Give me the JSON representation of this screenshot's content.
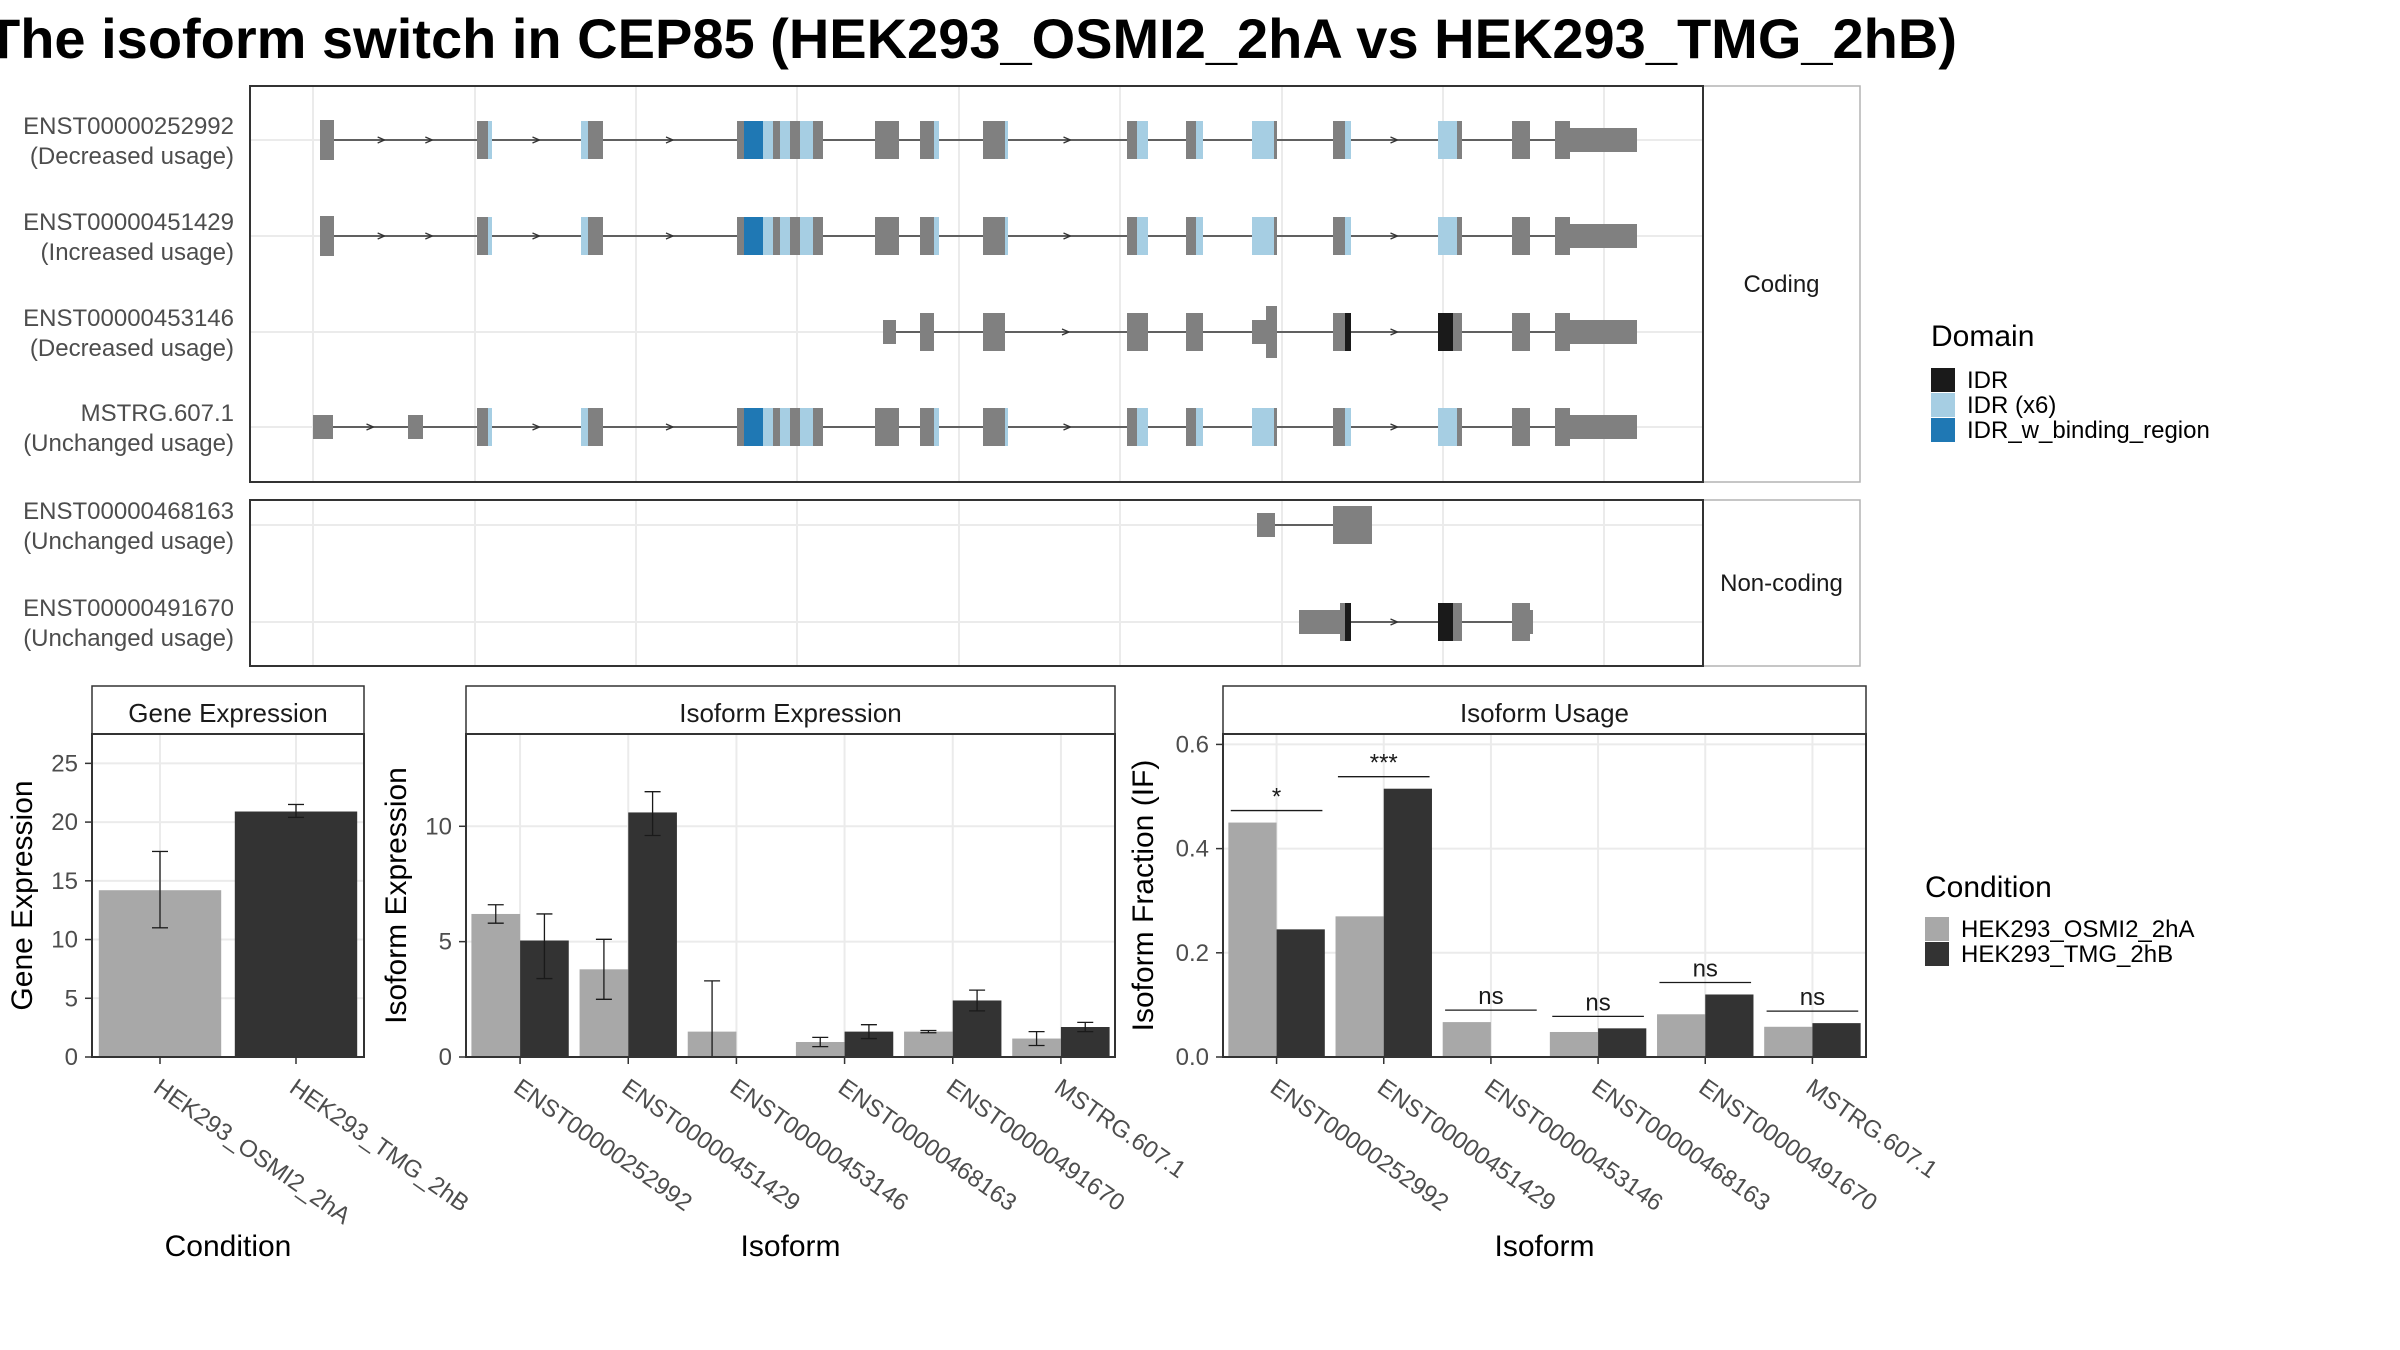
{
  "title": "The isoform switch in CEP85 (HEK293_OSMI2_2hA vs HEK293_TMG_2hB)",
  "colors": {
    "exon": "#808080",
    "IDR": "#1a1a1a",
    "IDR (x6)": "#a6cee3",
    "IDR_w_binding_region": "#1f78b4",
    "condA": "#a8a8a8",
    "condB": "#333333",
    "panel_border": "#333333",
    "strip_border": "#b3b3b3",
    "grid": "#ebebeb"
  },
  "structure": {
    "groups": [
      {
        "label": "Coding",
        "transcripts": [
          {
            "id": "ENST00000252992",
            "status": "(Decreased usage)"
          },
          {
            "id": "ENST00000451429",
            "status": "(Increased usage)"
          },
          {
            "id": "ENST00000453146",
            "status": "(Decreased usage)"
          },
          {
            "id": "MSTRG.607.1",
            "status": "(Unchanged usage)"
          }
        ]
      },
      {
        "label": "Non-coding",
        "transcripts": [
          {
            "id": "ENST00000468163",
            "status": "(Unchanged usage)"
          },
          {
            "id": "ENST00000491670",
            "status": "(Unchanged usage)"
          }
        ]
      }
    ],
    "domain_legend": {
      "title": "Domain",
      "items": [
        {
          "label": "IDR",
          "color": "#1a1a1a"
        },
        {
          "label": "IDR (x6)",
          "color": "#a6cee3"
        },
        {
          "label": "IDR_w_binding_region",
          "color": "#1f78b4"
        }
      ]
    }
  },
  "condition_legend": {
    "title": "Condition",
    "items": [
      {
        "label": "HEK293_OSMI2_2hA",
        "color": "#a8a8a8"
      },
      {
        "label": "HEK293_TMG_2hB",
        "color": "#333333"
      }
    ]
  },
  "chart_data": [
    {
      "type": "bar",
      "title": "Gene Expression",
      "xlabel": "Condition",
      "ylabel": "Gene Expression",
      "ylim": [
        0,
        27.5
      ],
      "yticks": [
        0,
        5,
        10,
        15,
        20,
        25
      ],
      "categories": [
        "HEK293_OSMI2_2hA",
        "HEK293_TMG_2hB"
      ],
      "values": [
        14.2,
        20.9
      ],
      "errors": [
        [
          11.0,
          17.5
        ],
        [
          20.4,
          21.5
        ]
      ]
    },
    {
      "type": "bar",
      "title": "Isoform Expression",
      "xlabel": "Isoform",
      "ylabel": "Isoform Expression",
      "ylim": [
        0,
        14
      ],
      "yticks": [
        0,
        5,
        10
      ],
      "categories": [
        "ENST00000252992",
        "ENST00000451429",
        "ENST00000453146",
        "ENST00000468163",
        "ENST00000491670",
        "MSTRG.607.1"
      ],
      "series": [
        {
          "name": "HEK293_OSMI2_2hA",
          "values": [
            6.2,
            3.8,
            1.1,
            0.65,
            1.1,
            0.8
          ],
          "errors": [
            [
              5.8,
              6.6
            ],
            [
              2.5,
              5.1
            ],
            [
              0.0,
              3.3
            ],
            [
              0.45,
              0.85
            ],
            [
              1.05,
              1.15
            ],
            [
              0.5,
              1.1
            ]
          ]
        },
        {
          "name": "HEK293_TMG_2hB",
          "values": [
            5.05,
            10.6,
            0.0,
            1.1,
            2.45,
            1.3
          ],
          "errors": [
            [
              3.4,
              6.2
            ],
            [
              9.6,
              11.5
            ],
            [
              0.0,
              0.0
            ],
            [
              0.8,
              1.4
            ],
            [
              2.0,
              2.9
            ],
            [
              1.1,
              1.5
            ]
          ]
        }
      ]
    },
    {
      "type": "bar",
      "title": "Isoform Usage",
      "xlabel": "Isoform",
      "ylabel": "Isoform Fraction (IF)",
      "ylim": [
        0,
        0.62
      ],
      "yticks": [
        0.0,
        0.2,
        0.4,
        0.6
      ],
      "categories": [
        "ENST00000252992",
        "ENST00000451429",
        "ENST00000453146",
        "ENST00000468163",
        "ENST00000491670",
        "MSTRG.607.1"
      ],
      "series": [
        {
          "name": "HEK293_OSMI2_2hA",
          "values": [
            0.45,
            0.27,
            0.067,
            0.048,
            0.082,
            0.058
          ]
        },
        {
          "name": "HEK293_TMG_2hB",
          "values": [
            0.245,
            0.515,
            0.0,
            0.055,
            0.12,
            0.065
          ]
        }
      ],
      "significance": [
        "*",
        "***",
        "ns",
        "ns",
        "ns",
        "ns"
      ]
    }
  ]
}
